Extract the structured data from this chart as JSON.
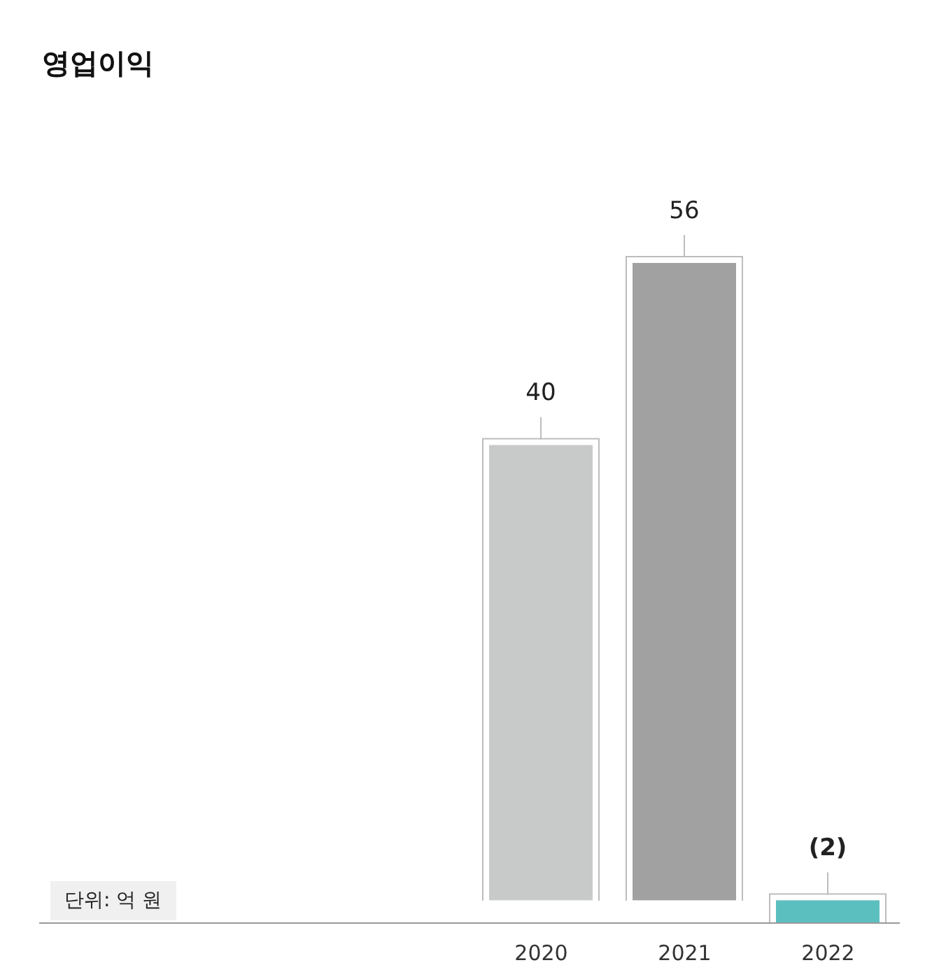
{
  "chart_data": {
    "type": "bar",
    "title": "영업이익",
    "categories": [
      null,
      null,
      null,
      "2020",
      "2021",
      "2022"
    ],
    "values": [
      null,
      null,
      null,
      40,
      56,
      -2
    ],
    "colors": [
      "#c8cac9",
      "#c8cac9",
      "#c8cac9",
      "#c8cac9",
      "#a0a1a0",
      "#5cbfbf"
    ],
    "value_labels": [
      null,
      null,
      null,
      "40",
      "56",
      "(2)"
    ],
    "tick_labels": "x",
    "annotations": [
      "단위: 억 원"
    ]
  }
}
